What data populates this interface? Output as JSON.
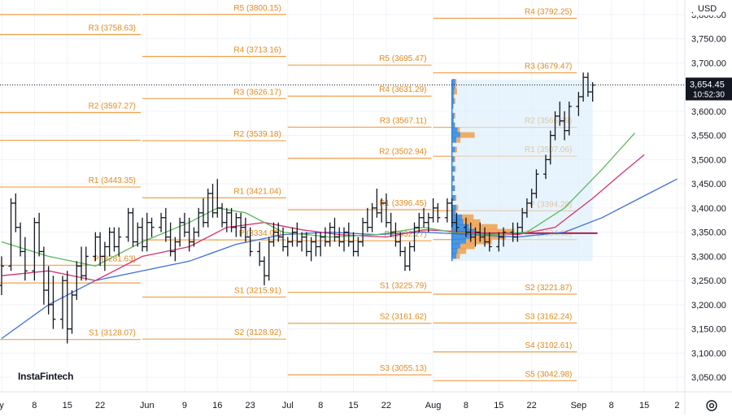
{
  "currency": "USD",
  "watermark": "InstaFintech",
  "last_price_label": "3,654.45",
  "countdown": "10:52:30",
  "colors": {
    "pivot": "#f0a04b",
    "pivot_text": "#e08a1e",
    "sma_fast": "#5cb85c",
    "sma_mid": "#d6336c",
    "sma_slow": "#3f6fd8",
    "volume_profile_box": "#d9ecfb",
    "volume_buy": "#2e86de",
    "volume_sell": "#f0a04b",
    "poc_line": "#b0214a",
    "price_label_bg": "#131722"
  },
  "chart_data": {
    "type": "ohlc",
    "y_axis": {
      "min": 3020,
      "max": 3830,
      "ticks": [
        "3,800.00",
        "3,750.00",
        "3,700.00",
        "3,650.00",
        "3,600.00",
        "3,550.00",
        "3,500.00",
        "3,450.00",
        "3,400.00",
        "3,350.00",
        "3,300.00",
        "3,250.00",
        "3,200.00",
        "3,150.00",
        "3,100.00",
        "3,050.00"
      ],
      "tick_values": [
        3800,
        3750,
        3700,
        3650,
        3600,
        3550,
        3500,
        3450,
        3400,
        3350,
        3300,
        3250,
        3200,
        3150,
        3100,
        3050
      ]
    },
    "x_axis": {
      "ticks": [
        {
          "label": "y",
          "day": 0
        },
        {
          "label": "8",
          "day": 7
        },
        {
          "label": "15",
          "day": 14
        },
        {
          "label": "22",
          "day": 21
        },
        {
          "label": "Jun",
          "day": 31
        },
        {
          "label": "9",
          "day": 39
        },
        {
          "label": "16",
          "day": 46
        },
        {
          "label": "23",
          "day": 53
        },
        {
          "label": "Jul",
          "day": 61
        },
        {
          "label": "8",
          "day": 68
        },
        {
          "label": "15",
          "day": 75
        },
        {
          "label": "22",
          "day": 82
        },
        {
          "label": "Aug",
          "day": 92
        },
        {
          "label": "8",
          "day": 99
        },
        {
          "label": "15",
          "day": 106
        },
        {
          "label": "22",
          "day": 113
        },
        {
          "label": "Sep",
          "day": 123
        },
        {
          "label": "8",
          "day": 130
        },
        {
          "label": "15",
          "day": 137
        },
        {
          "label": "2",
          "day": 144
        }
      ]
    },
    "current_price": 3654.45,
    "pivot_periods": [
      {
        "day_start": -10,
        "day_end": 30,
        "levels": [
          {
            "name": "R3",
            "value": 3758.63
          },
          {
            "name": "R2",
            "value": 3597.27
          },
          {
            "name": "R1",
            "value": 3443.35
          },
          {
            "name": "P",
            "value": 3281.63
          },
          {
            "name": "S1",
            "value": 3128.07
          },
          {
            "name": "",
            "value": 3800.0
          },
          {
            "name": "",
            "value": 3540.0
          },
          {
            "name": "",
            "value": 3245.0
          }
        ]
      },
      {
        "day_start": 30,
        "day_end": 61,
        "levels": [
          {
            "name": "R5",
            "value": 3800.15
          },
          {
            "name": "R4",
            "value": 3713.16
          },
          {
            "name": "R3",
            "value": 3626.17
          },
          {
            "name": "R2",
            "value": 3539.18
          },
          {
            "name": "R1",
            "value": 3421.04
          },
          {
            "name": "P",
            "value": 3334.05
          },
          {
            "name": "S1",
            "value": 3215.91
          },
          {
            "name": "S2",
            "value": 3128.92
          }
        ]
      },
      {
        "day_start": 61,
        "day_end": 92,
        "levels": [
          {
            "name": "R5",
            "value": 3695.47
          },
          {
            "name": "R4",
            "value": 3631.29
          },
          {
            "name": "R3",
            "value": 3567.11
          },
          {
            "name": "R2",
            "value": 3502.94
          },
          {
            "name": "R1",
            "value": 3396.45
          },
          {
            "name": "P",
            "value": 3332.27
          },
          {
            "name": "S1",
            "value": 3225.79
          },
          {
            "name": "S2",
            "value": 3161.62
          },
          {
            "name": "S3",
            "value": 3055.13
          }
        ]
      },
      {
        "day_start": 92,
        "day_end": 123,
        "levels": [
          {
            "name": "R4",
            "value": 3792.25
          },
          {
            "name": "R3",
            "value": 3679.47
          },
          {
            "name": "R2",
            "value": 3566.69
          },
          {
            "name": "R1",
            "value": 3507.06
          },
          {
            "name": "P",
            "value": 3394.28
          },
          {
            "name": "S1",
            "value": 3334.65
          },
          {
            "name": "S2",
            "value": 3221.87
          },
          {
            "name": "S3",
            "value": 3162.24
          },
          {
            "name": "S4",
            "value": 3102.61
          },
          {
            "name": "S5",
            "value": 3042.98
          }
        ]
      }
    ],
    "bars": [
      [
        0,
        3240,
        3300,
        3220,
        3280
      ],
      [
        2,
        3280,
        3420,
        3270,
        3410
      ],
      [
        3,
        3410,
        3430,
        3350,
        3360
      ],
      [
        4,
        3360,
        3370,
        3300,
        3310
      ],
      [
        5,
        3310,
        3340,
        3250,
        3270
      ],
      [
        7,
        3270,
        3380,
        3250,
        3370
      ],
      [
        8,
        3370,
        3390,
        3300,
        3310
      ],
      [
        9,
        3310,
        3320,
        3200,
        3230
      ],
      [
        10,
        3230,
        3280,
        3180,
        3200
      ],
      [
        11,
        3200,
        3260,
        3150,
        3170
      ],
      [
        13,
        3170,
        3260,
        3150,
        3250
      ],
      [
        14,
        3250,
        3270,
        3120,
        3150
      ],
      [
        15,
        3150,
        3230,
        3140,
        3220
      ],
      [
        16,
        3220,
        3290,
        3210,
        3280
      ],
      [
        17,
        3280,
        3320,
        3250,
        3260
      ],
      [
        18,
        3260,
        3320,
        3250,
        3300
      ],
      [
        20,
        3300,
        3350,
        3290,
        3340
      ],
      [
        21,
        3340,
        3350,
        3280,
        3300
      ],
      [
        22,
        3300,
        3330,
        3270,
        3320
      ],
      [
        23,
        3320,
        3360,
        3300,
        3350
      ],
      [
        24,
        3350,
        3360,
        3310,
        3320
      ],
      [
        25,
        3320,
        3360,
        3300,
        3340
      ],
      [
        27,
        3340,
        3400,
        3330,
        3390
      ],
      [
        28,
        3390,
        3400,
        3320,
        3330
      ],
      [
        29,
        3330,
        3370,
        3320,
        3360
      ],
      [
        30,
        3360,
        3380,
        3310,
        3320
      ],
      [
        31,
        3320,
        3390,
        3310,
        3370
      ],
      [
        32,
        3370,
        3380,
        3340,
        3360
      ],
      [
        34,
        3360,
        3390,
        3350,
        3380
      ],
      [
        35,
        3380,
        3400,
        3330,
        3340
      ],
      [
        36,
        3340,
        3370,
        3300,
        3310
      ],
      [
        37,
        3310,
        3340,
        3290,
        3330
      ],
      [
        38,
        3330,
        3380,
        3320,
        3370
      ],
      [
        39,
        3370,
        3390,
        3340,
        3350
      ],
      [
        40,
        3350,
        3380,
        3310,
        3330
      ],
      [
        41,
        3330,
        3360,
        3320,
        3350
      ],
      [
        42,
        3350,
        3400,
        3340,
        3390
      ],
      [
        43,
        3390,
        3420,
        3360,
        3370
      ],
      [
        44,
        3370,
        3440,
        3360,
        3430
      ],
      [
        45,
        3430,
        3450,
        3380,
        3390
      ],
      [
        46,
        3390,
        3460,
        3380,
        3400
      ],
      [
        47,
        3400,
        3410,
        3360,
        3370
      ],
      [
        48,
        3370,
        3400,
        3350,
        3390
      ],
      [
        49,
        3390,
        3400,
        3350,
        3360
      ],
      [
        50,
        3360,
        3390,
        3340,
        3380
      ],
      [
        51,
        3380,
        3390,
        3340,
        3360
      ],
      [
        52,
        3360,
        3380,
        3330,
        3340
      ],
      [
        53,
        3340,
        3360,
        3300,
        3310
      ],
      [
        55,
        3310,
        3330,
        3280,
        3290
      ],
      [
        56,
        3290,
        3300,
        3240,
        3260
      ],
      [
        57,
        3260,
        3340,
        3250,
        3330
      ],
      [
        58,
        3330,
        3370,
        3320,
        3350
      ],
      [
        59,
        3350,
        3370,
        3330,
        3340
      ],
      [
        60,
        3340,
        3360,
        3310,
        3320
      ],
      [
        61,
        3320,
        3340,
        3300,
        3330
      ],
      [
        62,
        3330,
        3360,
        3320,
        3350
      ],
      [
        63,
        3350,
        3370,
        3320,
        3330
      ],
      [
        64,
        3330,
        3350,
        3310,
        3340
      ],
      [
        65,
        3340,
        3350,
        3300,
        3310
      ],
      [
        66,
        3310,
        3340,
        3290,
        3330
      ],
      [
        67,
        3330,
        3350,
        3300,
        3320
      ],
      [
        68,
        3320,
        3350,
        3300,
        3340
      ],
      [
        69,
        3340,
        3360,
        3320,
        3330
      ],
      [
        70,
        3330,
        3370,
        3320,
        3360
      ],
      [
        71,
        3360,
        3380,
        3330,
        3340
      ],
      [
        72,
        3340,
        3360,
        3320,
        3330
      ],
      [
        73,
        3330,
        3360,
        3310,
        3350
      ],
      [
        74,
        3350,
        3370,
        3320,
        3330
      ],
      [
        75,
        3330,
        3350,
        3300,
        3310
      ],
      [
        76,
        3310,
        3340,
        3300,
        3330
      ],
      [
        77,
        3330,
        3380,
        3320,
        3370
      ],
      [
        78,
        3370,
        3400,
        3350,
        3360
      ],
      [
        79,
        3360,
        3410,
        3350,
        3400
      ],
      [
        80,
        3400,
        3440,
        3380,
        3390
      ],
      [
        81,
        3390,
        3420,
        3370,
        3410
      ],
      [
        82,
        3410,
        3430,
        3360,
        3370
      ],
      [
        83,
        3370,
        3390,
        3340,
        3350
      ],
      [
        84,
        3350,
        3370,
        3320,
        3330
      ],
      [
        85,
        3330,
        3350,
        3300,
        3310
      ],
      [
        86,
        3310,
        3320,
        3270,
        3280
      ],
      [
        87,
        3280,
        3330,
        3270,
        3320
      ],
      [
        88,
        3320,
        3370,
        3310,
        3360
      ],
      [
        89,
        3360,
        3390,
        3350,
        3380
      ],
      [
        90,
        3380,
        3400,
        3360,
        3370
      ],
      [
        91,
        3370,
        3390,
        3350,
        3380
      ],
      [
        92,
        3380,
        3420,
        3370,
        3400
      ],
      [
        93,
        3400,
        3410,
        3370,
        3380
      ],
      [
        95,
        3380,
        3420,
        3370,
        3410
      ],
      [
        96,
        3410,
        3420,
        3360,
        3370
      ],
      [
        97,
        3370,
        3390,
        3350,
        3360
      ],
      [
        99,
        3360,
        3380,
        3340,
        3350
      ],
      [
        100,
        3350,
        3370,
        3330,
        3340
      ],
      [
        101,
        3340,
        3360,
        3320,
        3350
      ],
      [
        102,
        3350,
        3370,
        3330,
        3340
      ],
      [
        103,
        3340,
        3360,
        3320,
        3330
      ],
      [
        104,
        3330,
        3350,
        3310,
        3320
      ],
      [
        106,
        3320,
        3350,
        3310,
        3340
      ],
      [
        107,
        3340,
        3360,
        3320,
        3350
      ],
      [
        109,
        3350,
        3370,
        3330,
        3340
      ],
      [
        110,
        3340,
        3370,
        3330,
        3360
      ],
      [
        111,
        3360,
        3400,
        3350,
        3390
      ],
      [
        112,
        3390,
        3420,
        3380,
        3410
      ],
      [
        113,
        3410,
        3440,
        3400,
        3430
      ],
      [
        114,
        3430,
        3480,
        3420,
        3470
      ],
      [
        116,
        3470,
        3510,
        3460,
        3500
      ],
      [
        117,
        3500,
        3560,
        3490,
        3550
      ],
      [
        118,
        3550,
        3600,
        3540,
        3590
      ],
      [
        119,
        3590,
        3620,
        3570,
        3580
      ],
      [
        120,
        3580,
        3600,
        3540,
        3560
      ],
      [
        121,
        3560,
        3620,
        3550,
        3610
      ],
      [
        123,
        3610,
        3640,
        3590,
        3630
      ],
      [
        124,
        3630,
        3680,
        3620,
        3670
      ],
      [
        125,
        3670,
        3680,
        3630,
        3640
      ],
      [
        126,
        3640,
        3660,
        3620,
        3654
      ]
    ],
    "sma_fast": [
      [
        0,
        3330
      ],
      [
        10,
        3300
      ],
      [
        20,
        3280
      ],
      [
        30,
        3330
      ],
      [
        40,
        3370
      ],
      [
        46,
        3400
      ],
      [
        52,
        3390
      ],
      [
        60,
        3350
      ],
      [
        70,
        3340
      ],
      [
        80,
        3345
      ],
      [
        90,
        3360
      ],
      [
        96,
        3350
      ],
      [
        104,
        3345
      ],
      [
        112,
        3350
      ],
      [
        120,
        3400
      ],
      [
        128,
        3480
      ],
      [
        135,
        3555
      ]
    ],
    "sma_mid": [
      [
        0,
        3260
      ],
      [
        10,
        3270
      ],
      [
        20,
        3250
      ],
      [
        30,
        3300
      ],
      [
        40,
        3320
      ],
      [
        48,
        3360
      ],
      [
        56,
        3370
      ],
      [
        64,
        3355
      ],
      [
        72,
        3345
      ],
      [
        82,
        3340
      ],
      [
        90,
        3355
      ],
      [
        100,
        3350
      ],
      [
        110,
        3345
      ],
      [
        118,
        3360
      ],
      [
        126,
        3420
      ],
      [
        132,
        3470
      ],
      [
        137,
        3510
      ]
    ],
    "sma_slow": [
      [
        0,
        3130
      ],
      [
        10,
        3200
      ],
      [
        20,
        3250
      ],
      [
        30,
        3270
      ],
      [
        40,
        3290
      ],
      [
        50,
        3325
      ],
      [
        60,
        3345
      ],
      [
        70,
        3350
      ],
      [
        80,
        3345
      ],
      [
        90,
        3350
      ],
      [
        100,
        3345
      ],
      [
        110,
        3340
      ],
      [
        120,
        3350
      ],
      [
        128,
        3380
      ],
      [
        136,
        3420
      ],
      [
        144,
        3460
      ]
    ],
    "volume_profile": {
      "day_start": 96,
      "day_end": 126,
      "price_min": 3290,
      "price_max": 3665,
      "poc": 3348,
      "rows": [
        [
          3660,
          0.06,
          0.02
        ],
        [
          3650,
          0.05,
          0.03
        ],
        [
          3640,
          0.04,
          0.05
        ],
        [
          3630,
          0.03,
          0.01
        ],
        [
          3620,
          0.04,
          0.02
        ],
        [
          3610,
          0.02,
          0.01
        ],
        [
          3590,
          0.04,
          0.02
        ],
        [
          3580,
          0.03,
          0.0
        ],
        [
          3570,
          0.05,
          0.01
        ],
        [
          3560,
          0.1,
          0.04
        ],
        [
          3550,
          0.15,
          0.25
        ],
        [
          3540,
          0.08,
          0.07
        ],
        [
          3520,
          0.06,
          0.03
        ],
        [
          3500,
          0.04,
          0.02
        ],
        [
          3480,
          0.05,
          0.02
        ],
        [
          3460,
          0.04,
          0.01
        ],
        [
          3440,
          0.05,
          0.01
        ],
        [
          3420,
          0.06,
          0.02
        ],
        [
          3400,
          0.08,
          0.03
        ],
        [
          3390,
          0.06,
          0.02
        ],
        [
          3380,
          0.18,
          0.2
        ],
        [
          3370,
          0.2,
          0.3
        ],
        [
          3360,
          0.3,
          0.5
        ],
        [
          3350,
          0.4,
          0.7
        ],
        [
          3340,
          0.35,
          0.6
        ],
        [
          3330,
          0.25,
          0.45
        ],
        [
          3320,
          0.15,
          0.25
        ],
        [
          3310,
          0.1,
          0.15
        ],
        [
          3300,
          0.08,
          0.06
        ]
      ]
    }
  }
}
